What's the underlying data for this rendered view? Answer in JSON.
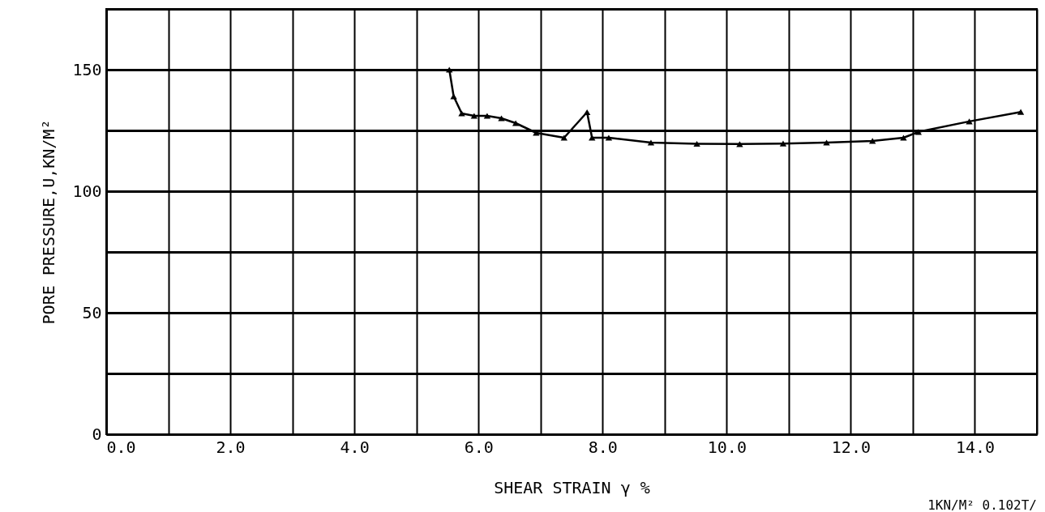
{
  "chart_data": {
    "type": "line",
    "xlabel": "SHEAR STRAIN γ %",
    "ylabel": "PORE PRESSURE,U,KN/M²",
    "annotations": [
      "1KN/M² 0.102T/"
    ],
    "x": [
      5.53,
      5.6,
      5.73,
      5.93,
      6.14,
      6.37,
      6.6,
      6.93,
      7.38,
      7.75,
      7.83,
      8.1,
      8.78,
      9.52,
      10.21,
      10.91,
      11.61,
      12.35,
      12.85,
      13.09,
      13.91,
      14.74
    ],
    "series": [
      {
        "color": "#000000",
        "values": [
          150,
          139,
          132,
          131,
          131,
          130,
          128,
          124,
          122,
          132.5,
          122,
          122,
          120,
          119.5,
          119.4,
          119.6,
          120,
          120.7,
          122,
          124.4,
          128.7,
          132.6
        ]
      }
    ],
    "xlim": [
      0,
      15
    ],
    "xticks": [
      {
        "value": 0,
        "label": "0.0"
      },
      {
        "value": 1,
        "label": null
      },
      {
        "value": 2,
        "label": "2.0"
      },
      {
        "value": 3,
        "label": null
      },
      {
        "value": 4,
        "label": "4.0"
      },
      {
        "value": 5,
        "label": null
      },
      {
        "value": 6,
        "label": "6.0"
      },
      {
        "value": 7,
        "label": null
      },
      {
        "value": 8,
        "label": "8.0"
      },
      {
        "value": 9,
        "label": null
      },
      {
        "value": 10,
        "label": "10.0"
      },
      {
        "value": 11,
        "label": null
      },
      {
        "value": 12,
        "label": "12.0"
      },
      {
        "value": 13,
        "label": null
      },
      {
        "value": 14,
        "label": "14.0"
      },
      {
        "value": 15,
        "label": null
      }
    ],
    "ylim": [
      0,
      175
    ],
    "yticks": [
      0,
      {
        "value": 25,
        "label": null
      },
      50,
      {
        "value": 75,
        "label": null
      },
      100,
      {
        "value": 125,
        "label": null
      },
      150,
      {
        "value": 175,
        "label": null
      }
    ],
    "grid": true,
    "marker": "triangle",
    "line_style": "solid"
  }
}
